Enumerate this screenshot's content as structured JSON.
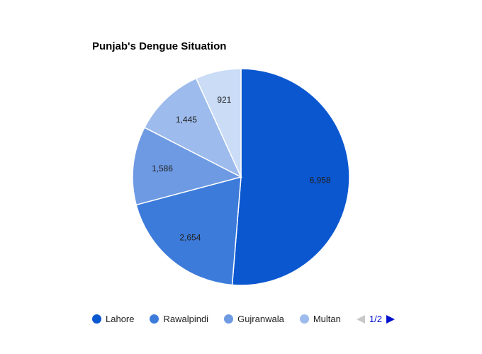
{
  "chart_data": {
    "type": "pie",
    "title": "Punjab's Dengue Situation",
    "categories": [
      "Lahore",
      "Rawalpindi",
      "Gujranwala",
      "Multan",
      ""
    ],
    "values": [
      6958,
      2654,
      1586,
      1445,
      921
    ],
    "value_labels": [
      "6,958",
      "2,654",
      "1,586",
      "1,445",
      "921"
    ],
    "colors": [
      "#0b57d0",
      "#3d7bdb",
      "#6d9ae3",
      "#9dbbec",
      "#cadcf6"
    ],
    "legend_position": "bottom",
    "legend_page": "1/2"
  },
  "title": "Punjab's Dengue Situation",
  "legend": {
    "items": [
      {
        "label": "Lahore",
        "color": "#0b57d0"
      },
      {
        "label": "Rawalpindi",
        "color": "#3d7bdb"
      },
      {
        "label": "Gujranwala",
        "color": "#6d9ae3"
      },
      {
        "label": "Multan",
        "color": "#9dbbec"
      }
    ],
    "page": "1/2"
  },
  "slices": [
    {
      "label": "6,958",
      "color": "#0b57d0"
    },
    {
      "label": "2,654",
      "color": "#3d7bdb"
    },
    {
      "label": "1,586",
      "color": "#6d9ae3"
    },
    {
      "label": "1,445",
      "color": "#9dbbec"
    },
    {
      "label": "921",
      "color": "#cadcf6"
    }
  ]
}
